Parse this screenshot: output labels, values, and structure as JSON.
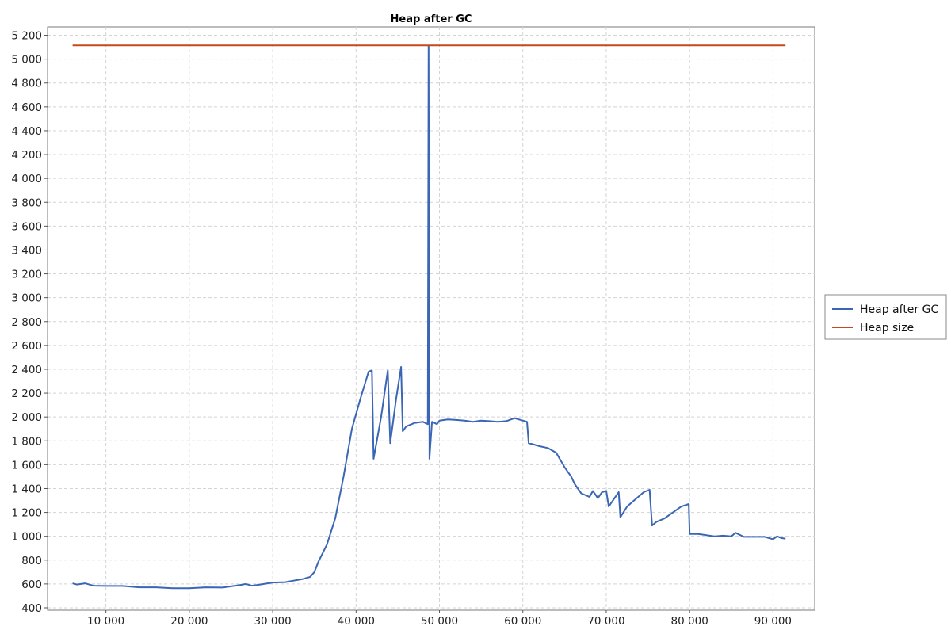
{
  "chart_data": {
    "type": "line",
    "title": "Heap after GC",
    "xlabel": "",
    "ylabel": "",
    "xlim": [
      3000,
      95000
    ],
    "ylim": [
      380,
      5270
    ],
    "x_ticks": [
      10000,
      20000,
      30000,
      40000,
      50000,
      60000,
      70000,
      80000,
      90000
    ],
    "x_tick_labels": [
      "10 000",
      "20 000",
      "30 000",
      "40 000",
      "50 000",
      "60 000",
      "70 000",
      "80 000",
      "90 000"
    ],
    "y_ticks": [
      400,
      600,
      800,
      1000,
      1200,
      1400,
      1600,
      1800,
      2000,
      2200,
      2400,
      2600,
      2800,
      3000,
      3200,
      3400,
      3600,
      3800,
      4000,
      4200,
      4400,
      4600,
      4800,
      5000,
      5200
    ],
    "y_tick_labels": [
      "400",
      "600",
      "800",
      "1 000",
      "1 200",
      "1 400",
      "1 600",
      "1 800",
      "2 000",
      "2 200",
      "2 400",
      "2 600",
      "2 800",
      "3 000",
      "3 200",
      "3 400",
      "3 600",
      "3 800",
      "4 000",
      "4 200",
      "4 400",
      "4 600",
      "4 800",
      "5 000",
      "5 200"
    ],
    "grid": true,
    "legend_position": "right",
    "series": [
      {
        "name": "Heap after GC",
        "color": "#3a66b5",
        "x": [
          6000,
          6500,
          7500,
          8500,
          10000,
          12000,
          14000,
          16000,
          18000,
          20000,
          22000,
          24000,
          26000,
          26800,
          27500,
          28500,
          30000,
          31500,
          32500,
          33500,
          34500,
          35000,
          35500,
          36500,
          37500,
          38500,
          39500,
          40500,
          41500,
          41900,
          42100,
          43000,
          43800,
          44100,
          44800,
          45400,
          45600,
          46000,
          47000,
          48000,
          48600,
          48700,
          48800,
          48900,
          49100,
          49700,
          50000,
          51000,
          52000,
          53000,
          54000,
          55000,
          56000,
          57000,
          58000,
          59000,
          60000,
          60500,
          60700,
          61000,
          62000,
          63000,
          64000,
          65000,
          65800,
          66200,
          67000,
          68000,
          68400,
          69000,
          69500,
          70000,
          70300,
          71000,
          71500,
          71700,
          72500,
          73500,
          74500,
          75200,
          75500,
          76000,
          77000,
          78000,
          79000,
          79900,
          80000,
          80300,
          81000,
          82000,
          83000,
          84000,
          85000,
          85500,
          86500,
          88000,
          89000,
          90000,
          90500,
          91000,
          91500
        ],
        "y": [
          605,
          595,
          605,
          585,
          583,
          583,
          572,
          572,
          564,
          564,
          572,
          570,
          590,
          600,
          585,
          595,
          612,
          615,
          628,
          640,
          660,
          700,
          790,
          930,
          1150,
          1500,
          1900,
          2150,
          2380,
          2390,
          1650,
          2000,
          2390,
          1780,
          2150,
          2420,
          1880,
          1920,
          1950,
          1960,
          1940,
          5110,
          1650,
          1750,
          1960,
          1940,
          1970,
          1980,
          1975,
          1970,
          1960,
          1970,
          1965,
          1960,
          1965,
          1990,
          1970,
          1960,
          1780,
          1775,
          1755,
          1740,
          1700,
          1580,
          1500,
          1440,
          1360,
          1330,
          1380,
          1320,
          1370,
          1380,
          1250,
          1320,
          1370,
          1160,
          1250,
          1310,
          1370,
          1390,
          1090,
          1120,
          1150,
          1200,
          1250,
          1270,
          1020,
          1020,
          1020,
          1010,
          1000,
          1005,
          1000,
          1030,
          995,
          995,
          995,
          975,
          1000,
          985,
          980
        ]
      },
      {
        "name": "Heap size",
        "color": "#c44a1e",
        "x": [
          6000,
          91500
        ],
        "y": [
          5115,
          5115
        ]
      }
    ]
  }
}
